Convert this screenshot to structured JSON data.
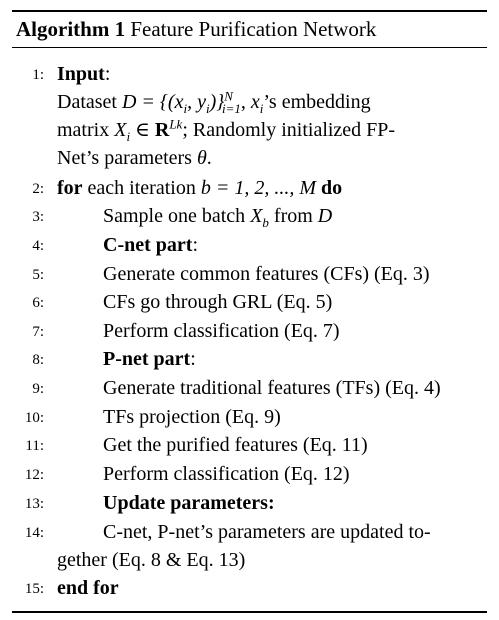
{
  "algorithm": {
    "label": "Algorithm 1",
    "title": "Feature Purification Network"
  },
  "lines": {
    "l1": {
      "num": "1:",
      "kw": "Input",
      "after": ":"
    },
    "l1a": {
      "pre": "Dataset",
      "math": "D = {(x",
      "math2": ", y",
      "math3": ")}",
      "sup": "N",
      "sub": "i=1",
      "post": ", ",
      "xi": "x",
      "xisub": "i",
      "tail": "’s embedding"
    },
    "l1b": {
      "pre": "matrix",
      "X": "X",
      "Xsub": "i",
      "in": " ∈ ",
      "R": "R",
      "Rsup": "Lk",
      "tail": "; Randomly initialized FP-"
    },
    "l1c": {
      "pre": "Net’s parameters",
      "theta": "θ",
      "tail": "."
    },
    "l2": {
      "num": "2:",
      "kw": "for",
      "mid": " each iteration ",
      "math": "b = 1, 2, ..., M",
      "kw2": "do"
    },
    "l3": {
      "num": "3:",
      "pre": "Sample one batch ",
      "X": "X",
      "Xsub": "b",
      "mid": " from ",
      "D": "D"
    },
    "l4": {
      "num": "4:",
      "kw": "C-net part",
      "after": ":"
    },
    "l5": {
      "num": "5:",
      "text": "Generate common features (CFs) (Eq. 3)"
    },
    "l6": {
      "num": "6:",
      "text": "CFs go through GRL (Eq. 5)"
    },
    "l7": {
      "num": "7:",
      "text": "Perform classification (Eq. 7)"
    },
    "l8": {
      "num": "8:",
      "kw": "P-net part",
      "after": ":"
    },
    "l9": {
      "num": "9:",
      "text": "Generate traditional features (TFs) (Eq. 4)"
    },
    "l10": {
      "num": "10:",
      "text": "TFs projection (Eq. 9)"
    },
    "l11": {
      "num": "11:",
      "text": "Get the purified features (Eq. 11)"
    },
    "l12": {
      "num": "12:",
      "text": "Perform classification (Eq. 12)"
    },
    "l13": {
      "num": "13:",
      "kw": "Update parameters:"
    },
    "l14": {
      "num": "14:",
      "text": "C-net, P-net’s parameters are updated to-"
    },
    "l14b": {
      "text": "gether (Eq. 8 & Eq. 13)"
    },
    "l15": {
      "num": "15:",
      "kw": "end for"
    }
  }
}
